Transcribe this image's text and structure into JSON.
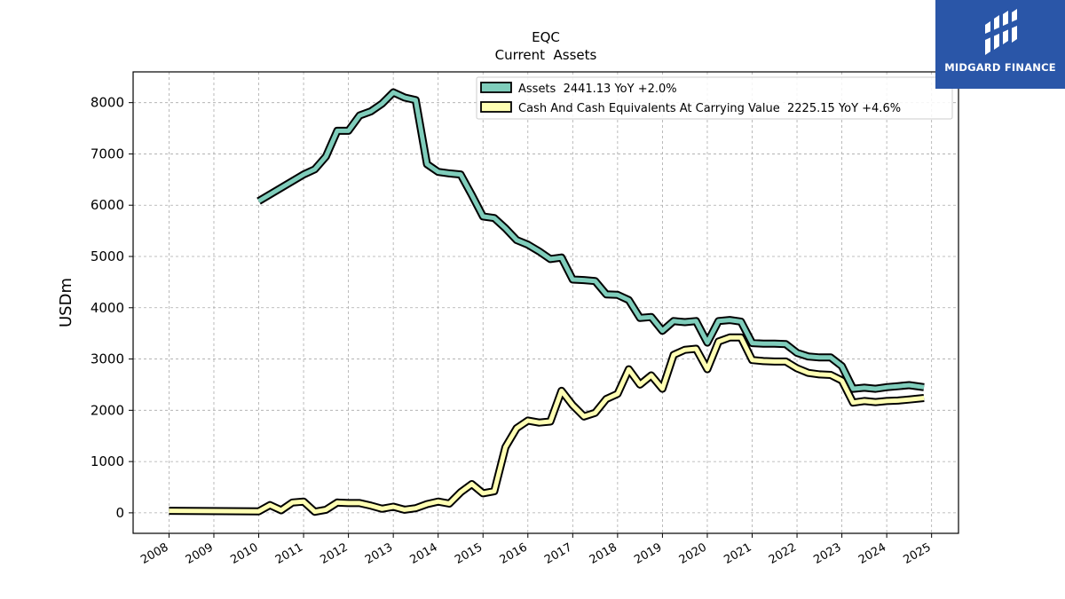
{
  "brand": {
    "name": "MIDGARD FINANCE",
    "bg_color": "#2a56a8"
  },
  "chart_data": {
    "type": "line",
    "title": "EQC",
    "subtitle": "Current  Assets",
    "xlabel": "",
    "ylabel": "USDm",
    "xlim": [
      2007.2,
      2025.6
    ],
    "ylim": [
      -400,
      8600
    ],
    "grid": true,
    "legend_position": "top-center",
    "x_ticks": [
      "2008",
      "2009",
      "2010",
      "2011",
      "2012",
      "2013",
      "2014",
      "2015",
      "2016",
      "2017",
      "2018",
      "2019",
      "2020",
      "2021",
      "2022",
      "2023",
      "2024",
      "2025"
    ],
    "y_ticks": [
      0,
      1000,
      2000,
      3000,
      4000,
      5000,
      6000,
      7000,
      8000
    ],
    "series": [
      {
        "name": "Assets  2441.13 YoY +2.0%",
        "color": "#7fcdbb",
        "x": [
          2010.0,
          2011.0,
          2011.25,
          2011.5,
          2011.75,
          2012.0,
          2012.25,
          2012.5,
          2012.75,
          2013.0,
          2013.25,
          2013.5,
          2013.75,
          2014.0,
          2014.25,
          2014.5,
          2014.75,
          2015.0,
          2015.25,
          2015.5,
          2015.75,
          2016.0,
          2016.25,
          2016.5,
          2016.75,
          2017.0,
          2017.25,
          2017.5,
          2017.75,
          2018.0,
          2018.25,
          2018.5,
          2018.75,
          2019.0,
          2019.25,
          2019.5,
          2019.75,
          2020.0,
          2020.25,
          2020.5,
          2020.75,
          2021.0,
          2021.25,
          2021.5,
          2021.75,
          2022.0,
          2022.25,
          2022.5,
          2022.75,
          2023.0,
          2023.25,
          2023.5,
          2023.75,
          2024.0,
          2024.25,
          2024.5,
          2024.83
        ],
        "values": [
          6080,
          6600,
          6700,
          6950,
          7450,
          7450,
          7750,
          7830,
          7980,
          8200,
          8100,
          8050,
          6800,
          6650,
          6620,
          6600,
          6200,
          5780,
          5750,
          5550,
          5320,
          5230,
          5100,
          4950,
          4980,
          4550,
          4540,
          4520,
          4260,
          4250,
          4150,
          3800,
          3820,
          3550,
          3740,
          3720,
          3740,
          3320,
          3740,
          3760,
          3730,
          3310,
          3300,
          3300,
          3290,
          3120,
          3050,
          3030,
          3030,
          2860,
          2420,
          2440,
          2420,
          2450,
          2470,
          2490,
          2450
        ]
      },
      {
        "name": "Cash And Cash Equivalents At Carrying Value  2225.15 YoY +4.6%",
        "color": "#ffffb3",
        "x": [
          2008.0,
          2010.0,
          2010.25,
          2010.5,
          2010.75,
          2011.0,
          2011.25,
          2011.5,
          2011.75,
          2012.0,
          2012.25,
          2012.5,
          2012.75,
          2013.0,
          2013.25,
          2013.5,
          2013.75,
          2014.0,
          2014.25,
          2014.5,
          2014.75,
          2015.0,
          2015.25,
          2015.5,
          2015.75,
          2016.0,
          2016.25,
          2016.5,
          2016.75,
          2017.0,
          2017.25,
          2017.5,
          2017.75,
          2018.0,
          2018.25,
          2018.5,
          2018.75,
          2019.0,
          2019.25,
          2019.5,
          2019.75,
          2020.0,
          2020.25,
          2020.5,
          2020.75,
          2021.0,
          2021.25,
          2021.5,
          2021.75,
          2022.0,
          2022.25,
          2022.5,
          2022.75,
          2023.0,
          2023.25,
          2023.5,
          2023.75,
          2024.0,
          2024.25,
          2024.5,
          2024.83
        ],
        "values": [
          40,
          30,
          150,
          50,
          200,
          220,
          20,
          60,
          200,
          190,
          190,
          140,
          80,
          120,
          60,
          90,
          170,
          220,
          180,
          400,
          560,
          380,
          420,
          1280,
          1650,
          1800,
          1760,
          1780,
          2380,
          2100,
          1880,
          1950,
          2220,
          2320,
          2800,
          2500,
          2680,
          2420,
          3080,
          3180,
          3200,
          2800,
          3340,
          3420,
          3420,
          2980,
          2960,
          2950,
          2950,
          2820,
          2730,
          2700,
          2690,
          2580,
          2150,
          2180,
          2160,
          2180,
          2190,
          2210,
          2240
        ]
      }
    ]
  }
}
